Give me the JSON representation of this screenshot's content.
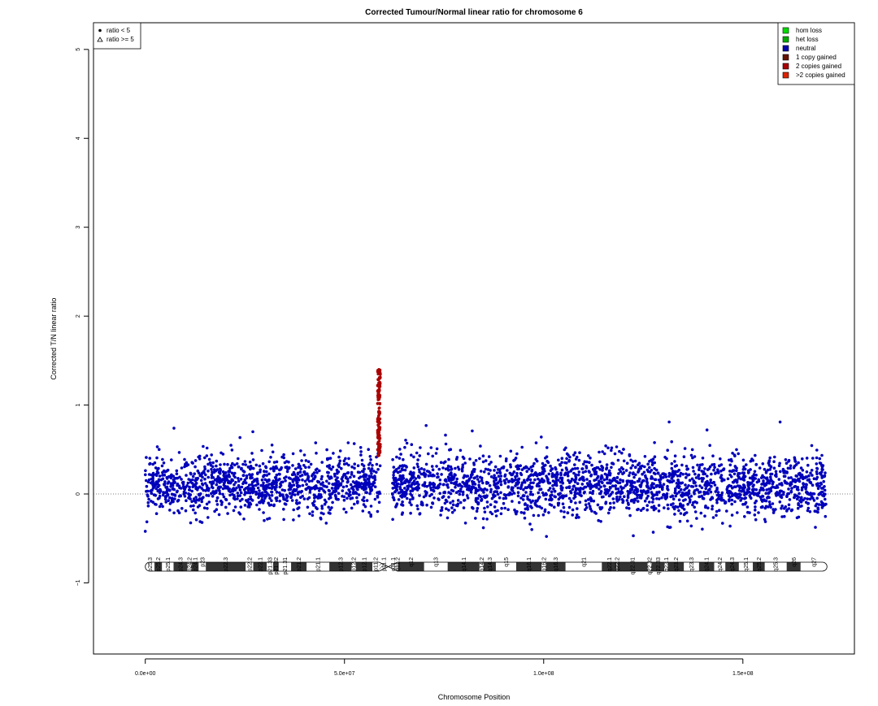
{
  "chart_data": {
    "type": "scatter",
    "title": "Corrected Tumour/Normal linear ratio for chromosome  6",
    "xlabel": "Chromosome Position",
    "ylabel": "Corrected T/N linear ratio",
    "xlim": [
      -13000000,
      178000000
    ],
    "ylim": [
      -1.8,
      5.3
    ],
    "x_ticks": [
      0,
      50000000,
      100000000,
      150000000
    ],
    "x_tick_labels": [
      "0.0e+00",
      "5.0e+07",
      "1.0e+08",
      "1.5e+08"
    ],
    "y_ticks": [
      -1,
      0,
      1,
      2,
      3,
      4,
      5
    ],
    "y_tick_labels": [
      "−1",
      "0",
      "1",
      "2",
      "3",
      "4",
      "5"
    ],
    "reference_line_y": 0,
    "marker_legend": {
      "position": "top-left",
      "entries": [
        {
          "symbol": "filled-circle",
          "label": "ratio < 5"
        },
        {
          "symbol": "open-triangle",
          "label": "ratio >= 5"
        }
      ]
    },
    "status_legend": {
      "position": "top-right",
      "entries": [
        {
          "label": "hom loss",
          "color": "#00dd00"
        },
        {
          "label": "het loss",
          "color": "#00aa00"
        },
        {
          "label": "neutral",
          "color": "#0000aa"
        },
        {
          "label": "1 copy gained",
          "color": "#661100"
        },
        {
          "label": "2 copies gained",
          "color": "#aa0000"
        },
        {
          "label": ">2 copies gained",
          "color": "#dd2200"
        }
      ]
    },
    "series": [
      {
        "status": "neutral",
        "color": "#0000bb",
        "segments": [
          {
            "x_range": [
              0,
              59000000
            ],
            "y_core": [
              -0.22,
              0.42
            ],
            "y_extremes": [
              -0.42,
              0.66
            ]
          },
          {
            "x_range": [
              62000000,
              171000000
            ],
            "y_core": [
              -0.24,
              0.44
            ],
            "y_extremes": [
              -0.48,
              0.81
            ]
          }
        ],
        "notable_points": [
          {
            "x": 7200000,
            "y": 0.74
          },
          {
            "x": 27000000,
            "y": 0.7
          },
          {
            "x": 70500000,
            "y": 0.77
          },
          {
            "x": 131500000,
            "y": 0.81
          },
          {
            "x": 141000000,
            "y": 0.72
          },
          {
            "x": 0,
            "y": -0.42
          },
          {
            "x": 122500000,
            "y": -0.47
          },
          {
            "x": 127500000,
            "y": -0.43
          }
        ]
      },
      {
        "status": "2 copies gained",
        "color": "#aa0000",
        "x_range": [
          58300000,
          59000000
        ],
        "y_range": [
          0.4,
          1.4
        ]
      }
    ],
    "ideogram": {
      "bands": [
        {
          "name": "p25.3",
          "start": 0,
          "end": 2300000,
          "stain": "gneg"
        },
        {
          "name": "p25.2",
          "start": 2300000,
          "end": 4200000,
          "stain": "gpos25"
        },
        {
          "name": "p25.1",
          "start": 4200000,
          "end": 7100000,
          "stain": "gneg"
        },
        {
          "name": "p24.3",
          "start": 7100000,
          "end": 10600000,
          "stain": "gpos50"
        },
        {
          "name": "p24.2",
          "start": 10600000,
          "end": 11600000,
          "stain": "gneg"
        },
        {
          "name": "p24.1",
          "start": 11600000,
          "end": 13400000,
          "stain": "gpos25"
        },
        {
          "name": "p23",
          "start": 13400000,
          "end": 15200000,
          "stain": "gneg"
        },
        {
          "name": "p22.3",
          "start": 15200000,
          "end": 25200000,
          "stain": "gpos75"
        },
        {
          "name": "p22.2",
          "start": 25200000,
          "end": 27100000,
          "stain": "gneg"
        },
        {
          "name": "p22.1",
          "start": 27100000,
          "end": 30500000,
          "stain": "gpos50"
        },
        {
          "name": "p21.33",
          "start": 30500000,
          "end": 32100000,
          "stain": "gneg"
        },
        {
          "name": "p21.32",
          "start": 32100000,
          "end": 33500000,
          "stain": "gpos25"
        },
        {
          "name": "p21.31",
          "start": 33500000,
          "end": 36600000,
          "stain": "gneg"
        },
        {
          "name": "p21.2",
          "start": 36600000,
          "end": 40500000,
          "stain": "gpos25"
        },
        {
          "name": "p21.1",
          "start": 40500000,
          "end": 46200000,
          "stain": "gneg"
        },
        {
          "name": "p12.3",
          "start": 46200000,
          "end": 51800000,
          "stain": "gpos100"
        },
        {
          "name": "p12.2",
          "start": 51800000,
          "end": 52900000,
          "stain": "gneg"
        },
        {
          "name": "p12.1",
          "start": 52900000,
          "end": 57000000,
          "stain": "gpos100"
        },
        {
          "name": "p11.2",
          "start": 57000000,
          "end": 58700000,
          "stain": "gneg"
        },
        {
          "name": "p11.1",
          "start": 58700000,
          "end": 61000000,
          "stain": "acen"
        },
        {
          "name": "q11.1",
          "start": 61000000,
          "end": 63300000,
          "stain": "acen"
        },
        {
          "name": "q11.2",
          "start": 63300000,
          "end": 63400000,
          "stain": "gneg"
        },
        {
          "name": "q12",
          "start": 63400000,
          "end": 70000000,
          "stain": "gpos100"
        },
        {
          "name": "q13",
          "start": 70000000,
          "end": 75900000,
          "stain": "gneg"
        },
        {
          "name": "q14.1",
          "start": 75900000,
          "end": 83900000,
          "stain": "gpos50"
        },
        {
          "name": "q14.2",
          "start": 83900000,
          "end": 84900000,
          "stain": "gneg"
        },
        {
          "name": "q14.3",
          "start": 84900000,
          "end": 88000000,
          "stain": "gpos50"
        },
        {
          "name": "q15",
          "start": 88000000,
          "end": 93100000,
          "stain": "gneg"
        },
        {
          "name": "q16.1",
          "start": 93100000,
          "end": 99500000,
          "stain": "gpos100"
        },
        {
          "name": "q16.2",
          "start": 99500000,
          "end": 100600000,
          "stain": "gneg"
        },
        {
          "name": "q16.3",
          "start": 100600000,
          "end": 105500000,
          "stain": "gpos100"
        },
        {
          "name": "q21",
          "start": 105500000,
          "end": 114600000,
          "stain": "gneg"
        },
        {
          "name": "q22.1",
          "start": 114600000,
          "end": 118300000,
          "stain": "gpos75"
        },
        {
          "name": "q22.2",
          "start": 118300000,
          "end": 118500000,
          "stain": "gneg"
        },
        {
          "name": "q22.31",
          "start": 118500000,
          "end": 126100000,
          "stain": "gpos100"
        },
        {
          "name": "q22.32",
          "start": 126100000,
          "end": 127100000,
          "stain": "gneg"
        },
        {
          "name": "q22.33",
          "start": 127100000,
          "end": 130300000,
          "stain": "gpos75"
        },
        {
          "name": "q23.1",
          "start": 130300000,
          "end": 131200000,
          "stain": "gneg"
        },
        {
          "name": "q23.2",
          "start": 131200000,
          "end": 135200000,
          "stain": "gpos50"
        },
        {
          "name": "q23.3",
          "start": 135200000,
          "end": 139000000,
          "stain": "gneg"
        },
        {
          "name": "q24.1",
          "start": 139000000,
          "end": 142800000,
          "stain": "gpos75"
        },
        {
          "name": "q24.2",
          "start": 142800000,
          "end": 145600000,
          "stain": "gneg"
        },
        {
          "name": "q24.3",
          "start": 145600000,
          "end": 149000000,
          "stain": "gpos75"
        },
        {
          "name": "q25.1",
          "start": 149000000,
          "end": 152500000,
          "stain": "gneg"
        },
        {
          "name": "q25.2",
          "start": 152500000,
          "end": 155500000,
          "stain": "gpos50"
        },
        {
          "name": "q25.3",
          "start": 155500000,
          "end": 161000000,
          "stain": "gneg"
        },
        {
          "name": "q26",
          "start": 161000000,
          "end": 164500000,
          "stain": "gpos50"
        },
        {
          "name": "q27",
          "start": 164500000,
          "end": 171115067,
          "stain": "gneg"
        }
      ]
    }
  }
}
